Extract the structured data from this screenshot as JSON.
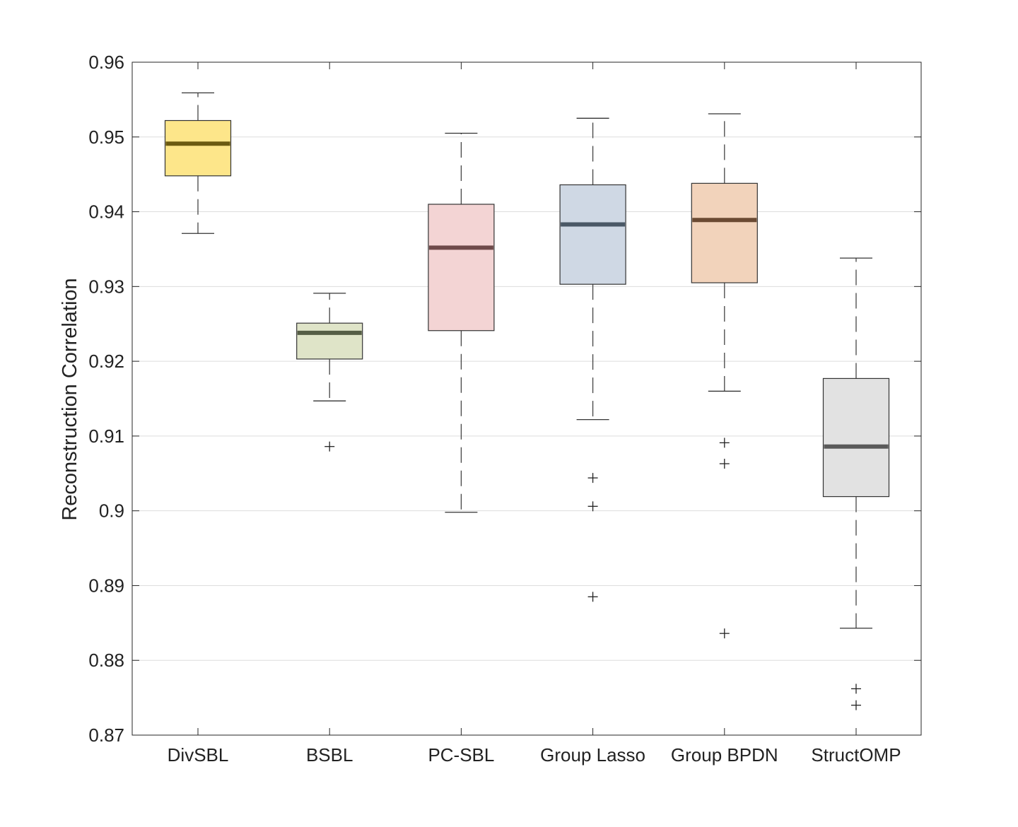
{
  "chart_data": {
    "type": "box",
    "title": "",
    "xlabel": "",
    "ylabel": "Reconstruction Correlation",
    "ylim": [
      0.87,
      0.96
    ],
    "yticks": [
      0.87,
      0.88,
      0.89,
      0.9,
      0.91,
      0.92,
      0.93,
      0.94,
      0.95,
      0.96
    ],
    "ytick_labels": [
      "0.87",
      "0.88",
      "0.89",
      "0.9",
      "0.91",
      "0.92",
      "0.93",
      "0.94",
      "0.95",
      "0.96"
    ],
    "grid": "horizontal",
    "categories": [
      "DivSBL",
      "BSBL",
      "PC-SBL",
      "Group Lasso",
      "Group BPDN",
      "StructOMP"
    ],
    "boxes": [
      {
        "name": "DivSBL",
        "whisker_low": 0.9371,
        "q1": 0.9448,
        "median": 0.9491,
        "q3": 0.9522,
        "whisker_high": 0.9559,
        "outliers": [],
        "fill": "#fde68a",
        "median_color": "#6b5a10"
      },
      {
        "name": "BSBL",
        "whisker_low": 0.9147,
        "q1": 0.9203,
        "median": 0.9238,
        "q3": 0.9251,
        "whisker_high": 0.9291,
        "outliers": [
          0.9086
        ],
        "fill": "#dfe4c8",
        "median_color": "#555d45"
      },
      {
        "name": "PC-SBL",
        "whisker_low": 0.8998,
        "q1": 0.9241,
        "median": 0.9352,
        "q3": 0.941,
        "whisker_high": 0.9505,
        "outliers": [],
        "fill": "#f3d4d4",
        "median_color": "#6e4a4a"
      },
      {
        "name": "Group Lasso",
        "whisker_low": 0.9122,
        "q1": 0.9303,
        "median": 0.9383,
        "q3": 0.9436,
        "whisker_high": 0.9525,
        "outliers": [
          0.9044,
          0.9006,
          0.8885
        ],
        "fill": "#cfd8e4",
        "median_color": "#4a5866"
      },
      {
        "name": "Group BPDN",
        "whisker_low": 0.916,
        "q1": 0.9305,
        "median": 0.9389,
        "q3": 0.9438,
        "whisker_high": 0.9531,
        "outliers": [
          0.9091,
          0.9063,
          0.8836
        ],
        "fill": "#f2d3bb",
        "median_color": "#6b4a33"
      },
      {
        "name": "StructOMP",
        "whisker_low": 0.8843,
        "q1": 0.9019,
        "median": 0.9086,
        "q3": 0.9177,
        "whisker_high": 0.9338,
        "outliers": [
          0.8762,
          0.874
        ],
        "fill": "#e2e2e2",
        "median_color": "#5a5a5a"
      }
    ]
  }
}
